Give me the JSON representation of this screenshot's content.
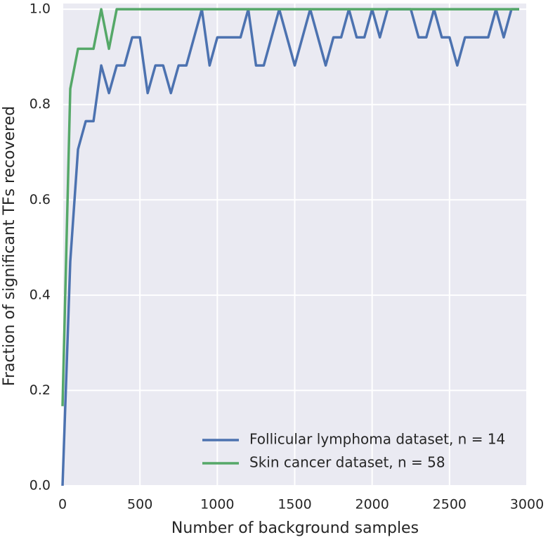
{
  "chart_data": {
    "type": "line",
    "x_label": "Number of background samples",
    "y_label": "Fraction of significant TFs recovered",
    "x": [
      0,
      50,
      100,
      150,
      200,
      250,
      300,
      350,
      400,
      450,
      500,
      550,
      600,
      650,
      700,
      750,
      800,
      850,
      900,
      950,
      1000,
      1050,
      1100,
      1150,
      1200,
      1250,
      1300,
      1350,
      1400,
      1450,
      1500,
      1550,
      1600,
      1650,
      1700,
      1750,
      1800,
      1850,
      1900,
      1950,
      2000,
      2050,
      2100,
      2150,
      2200,
      2250,
      2300,
      2350,
      2400,
      2450,
      2500,
      2550,
      2600,
      2650,
      2700,
      2750,
      2800,
      2850,
      2900,
      2950
    ],
    "series": [
      {
        "name": "Follicular lymphoma dataset, n = 14",
        "color": "#4c72b0",
        "values": [
          0,
          0.471,
          0.706,
          0.765,
          0.765,
          0.882,
          0.824,
          0.882,
          0.882,
          0.941,
          0.941,
          0.824,
          0.882,
          0.882,
          0.824,
          0.882,
          0.882,
          0.941,
          1.0,
          0.882,
          0.941,
          0.941,
          0.941,
          0.941,
          1.0,
          0.882,
          0.882,
          0.941,
          1.0,
          0.941,
          0.882,
          0.941,
          1.0,
          0.941,
          0.882,
          0.941,
          0.941,
          1.0,
          0.941,
          0.941,
          1.0,
          0.941,
          1.0,
          1.0,
          1.0,
          1.0,
          0.941,
          0.941,
          1.0,
          0.941,
          0.941,
          0.882,
          0.941,
          0.941,
          0.941,
          0.941,
          1.0,
          0.941,
          1.0,
          1.0
        ]
      },
      {
        "name": "Skin cancer dataset, n = 58",
        "color": "#55a868",
        "values": [
          0.167,
          0.833,
          0.917,
          0.917,
          0.917,
          1.0,
          0.917,
          1.0,
          1.0,
          1.0,
          1.0,
          1.0,
          1.0,
          1.0,
          1.0,
          1.0,
          1.0,
          1.0,
          1.0,
          1.0,
          1.0,
          1.0,
          1.0,
          1.0,
          1.0,
          1.0,
          1.0,
          1.0,
          1.0,
          1.0,
          1.0,
          1.0,
          1.0,
          1.0,
          1.0,
          1.0,
          1.0,
          1.0,
          1.0,
          1.0,
          1.0,
          1.0,
          1.0,
          1.0,
          1.0,
          1.0,
          1.0,
          1.0,
          1.0,
          1.0,
          1.0,
          1.0,
          1.0,
          1.0,
          1.0,
          1.0,
          1.0,
          1.0,
          1.0,
          1.0
        ]
      }
    ],
    "xlim": [
      0,
      3000
    ],
    "ylim": [
      0,
      1.012
    ],
    "xticks": [
      0,
      500,
      1000,
      1500,
      2000,
      2500,
      3000
    ],
    "yticks": [
      {
        "value": 0,
        "label": "0.0"
      },
      0.2,
      0.4,
      0.6,
      0.8,
      {
        "value": 1,
        "label": "1.0"
      }
    ],
    "grid": true,
    "legend": "lower right"
  }
}
